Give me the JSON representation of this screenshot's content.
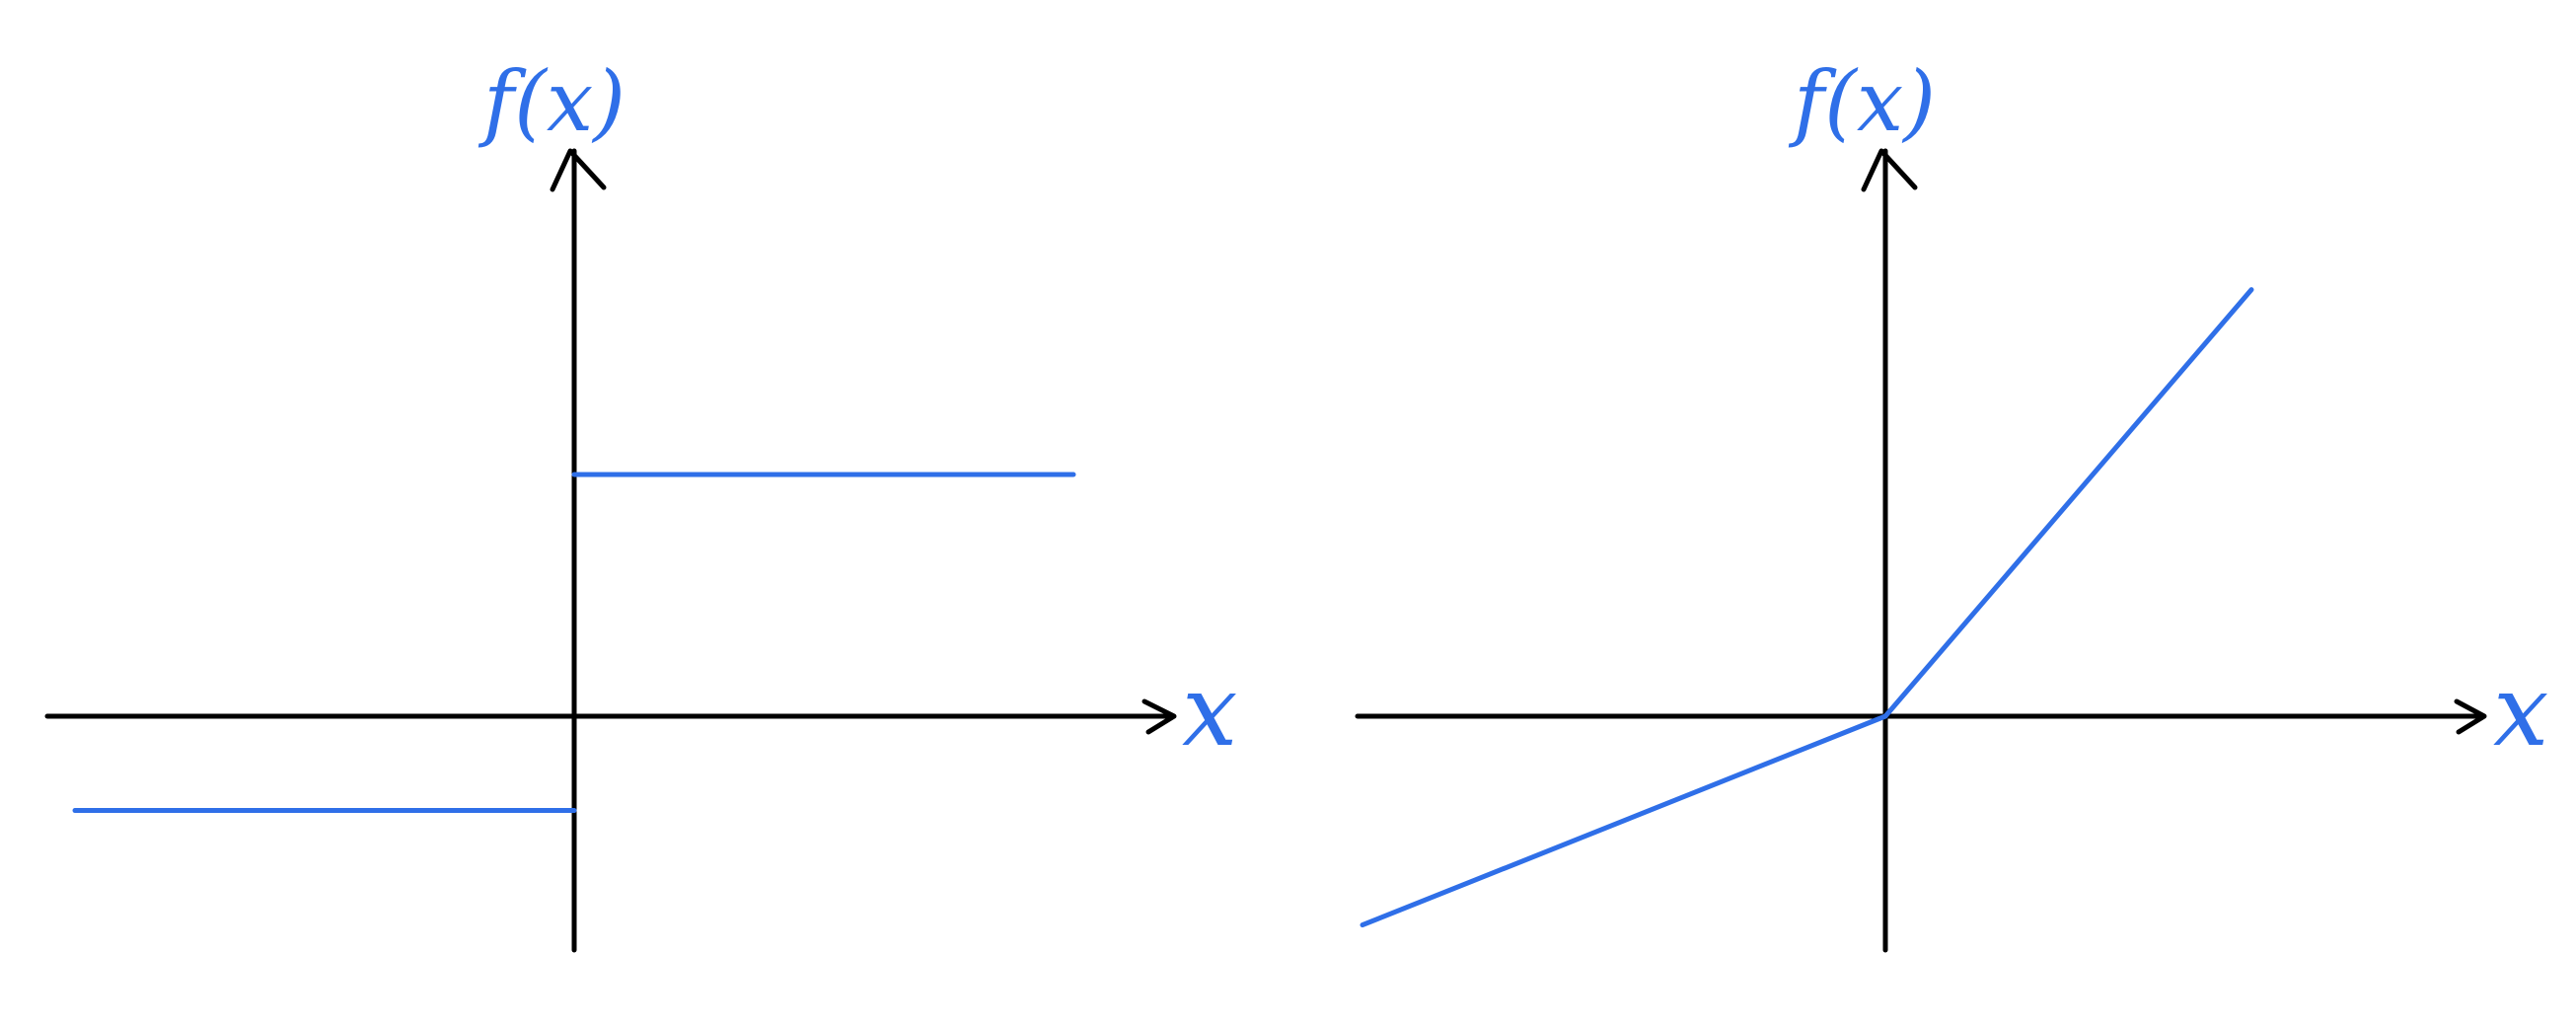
{
  "colors": {
    "axis": "#000000",
    "curve": "#2f6fe8"
  },
  "plots": [
    {
      "id": "step-function",
      "y_label": "f(x)",
      "x_label": "x",
      "segments": [
        {
          "name": "left-level",
          "from": [
            -1,
            -0.39
          ],
          "to": [
            0,
            -0.39
          ]
        },
        {
          "name": "right-level",
          "from": [
            0,
            1
          ],
          "to": [
            1,
            1
          ]
        }
      ]
    },
    {
      "id": "leaky-relu",
      "y_label": "f(x)",
      "x_label": "x",
      "segments": [
        {
          "name": "negative-branch",
          "from": [
            -1,
            -0.92
          ],
          "to": [
            0,
            0
          ]
        },
        {
          "name": "positive-branch",
          "from": [
            0,
            0
          ],
          "to": [
            0.7,
            1.88
          ]
        }
      ]
    }
  ]
}
